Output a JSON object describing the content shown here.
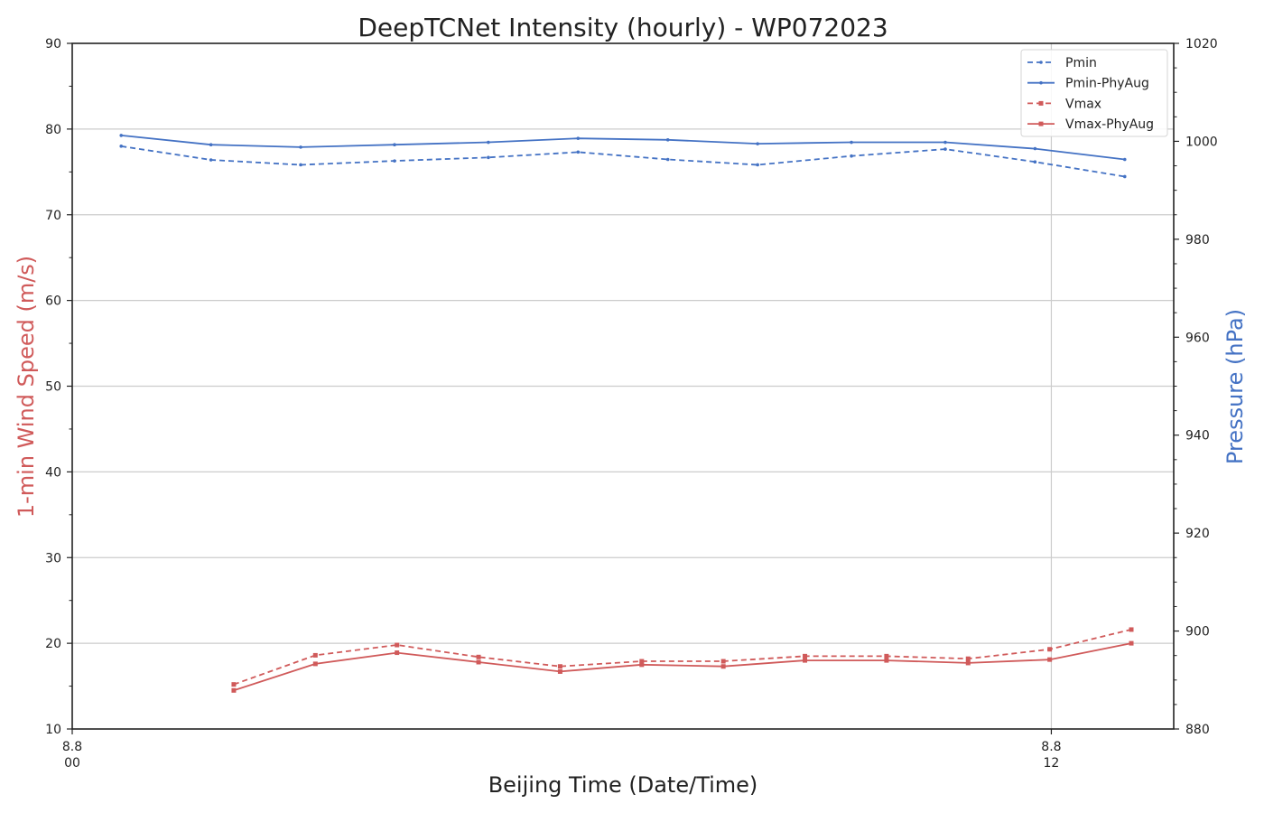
{
  "chart_data": {
    "type": "line",
    "title": "DeepTCNet Intensity (hourly) - WP072023",
    "xlabel": "Beijing Time (Date/Time)",
    "ylabel_left": "1-min Wind Speed (m/s)",
    "ylabel_right": "Pressure (hPa)",
    "ylim_left": [
      10,
      90
    ],
    "ylim_right": [
      880,
      1020
    ],
    "yticks_left": [
      "10",
      "20",
      "30",
      "40",
      "50",
      "60",
      "70",
      "80",
      "90"
    ],
    "yticks_right": [
      "880",
      "900",
      "920",
      "940",
      "960",
      "980",
      "1000",
      "1020"
    ],
    "xlim_hours": [
      0,
      13.5
    ],
    "xticks": [
      {
        "hour": 0,
        "date": "8.8",
        "time": "00"
      },
      {
        "hour": 12,
        "date": "8.8",
        "time": "12"
      }
    ],
    "grid": true,
    "legend_position": "top-right",
    "colors": {
      "pressure": "#4472C4",
      "wind": "#D05A5A",
      "axis": "#222222",
      "grid": "#CCCCCC"
    },
    "series": [
      {
        "name": "Pmin",
        "axis": "right",
        "style": "dashed",
        "color": "#4472C4",
        "x": [
          0.6,
          1.7,
          2.8,
          3.95,
          5.1,
          6.2,
          7.3,
          8.4,
          9.55,
          10.7,
          11.8,
          12.9
        ],
        "y": [
          999,
          996.2,
          995.2,
          996,
          996.7,
          997.8,
          996.3,
          995.2,
          997,
          998.4,
          995.8,
          992.8
        ]
      },
      {
        "name": "Pmin-PhyAug",
        "axis": "right",
        "style": "solid",
        "color": "#4472C4",
        "x": [
          0.6,
          1.7,
          2.8,
          3.95,
          5.1,
          6.2,
          7.3,
          8.4,
          9.55,
          10.7,
          11.8,
          12.9
        ],
        "y": [
          1001.2,
          999.3,
          998.8,
          999.3,
          999.8,
          1000.6,
          1000.3,
          999.5,
          999.8,
          999.8,
          998.5,
          996.3
        ]
      },
      {
        "name": "Vmax",
        "axis": "left",
        "style": "dashed",
        "color": "#D05A5A",
        "x": [
          1.98,
          2.98,
          3.98,
          4.98,
          5.98,
          6.98,
          7.98,
          8.98,
          9.98,
          10.98,
          11.98,
          12.98
        ],
        "y": [
          15.2,
          18.6,
          19.8,
          18.4,
          17.3,
          17.9,
          17.9,
          18.5,
          18.5,
          18.2,
          19.3,
          21.6
        ]
      },
      {
        "name": "Vmax-PhyAug",
        "axis": "left",
        "style": "solid",
        "color": "#D05A5A",
        "x": [
          1.98,
          2.98,
          3.98,
          4.98,
          5.98,
          6.98,
          7.98,
          8.98,
          9.98,
          10.98,
          11.98,
          12.98
        ],
        "y": [
          14.5,
          17.6,
          18.9,
          17.8,
          16.7,
          17.5,
          17.3,
          18.0,
          18.0,
          17.7,
          18.1,
          20.0
        ]
      }
    ]
  }
}
